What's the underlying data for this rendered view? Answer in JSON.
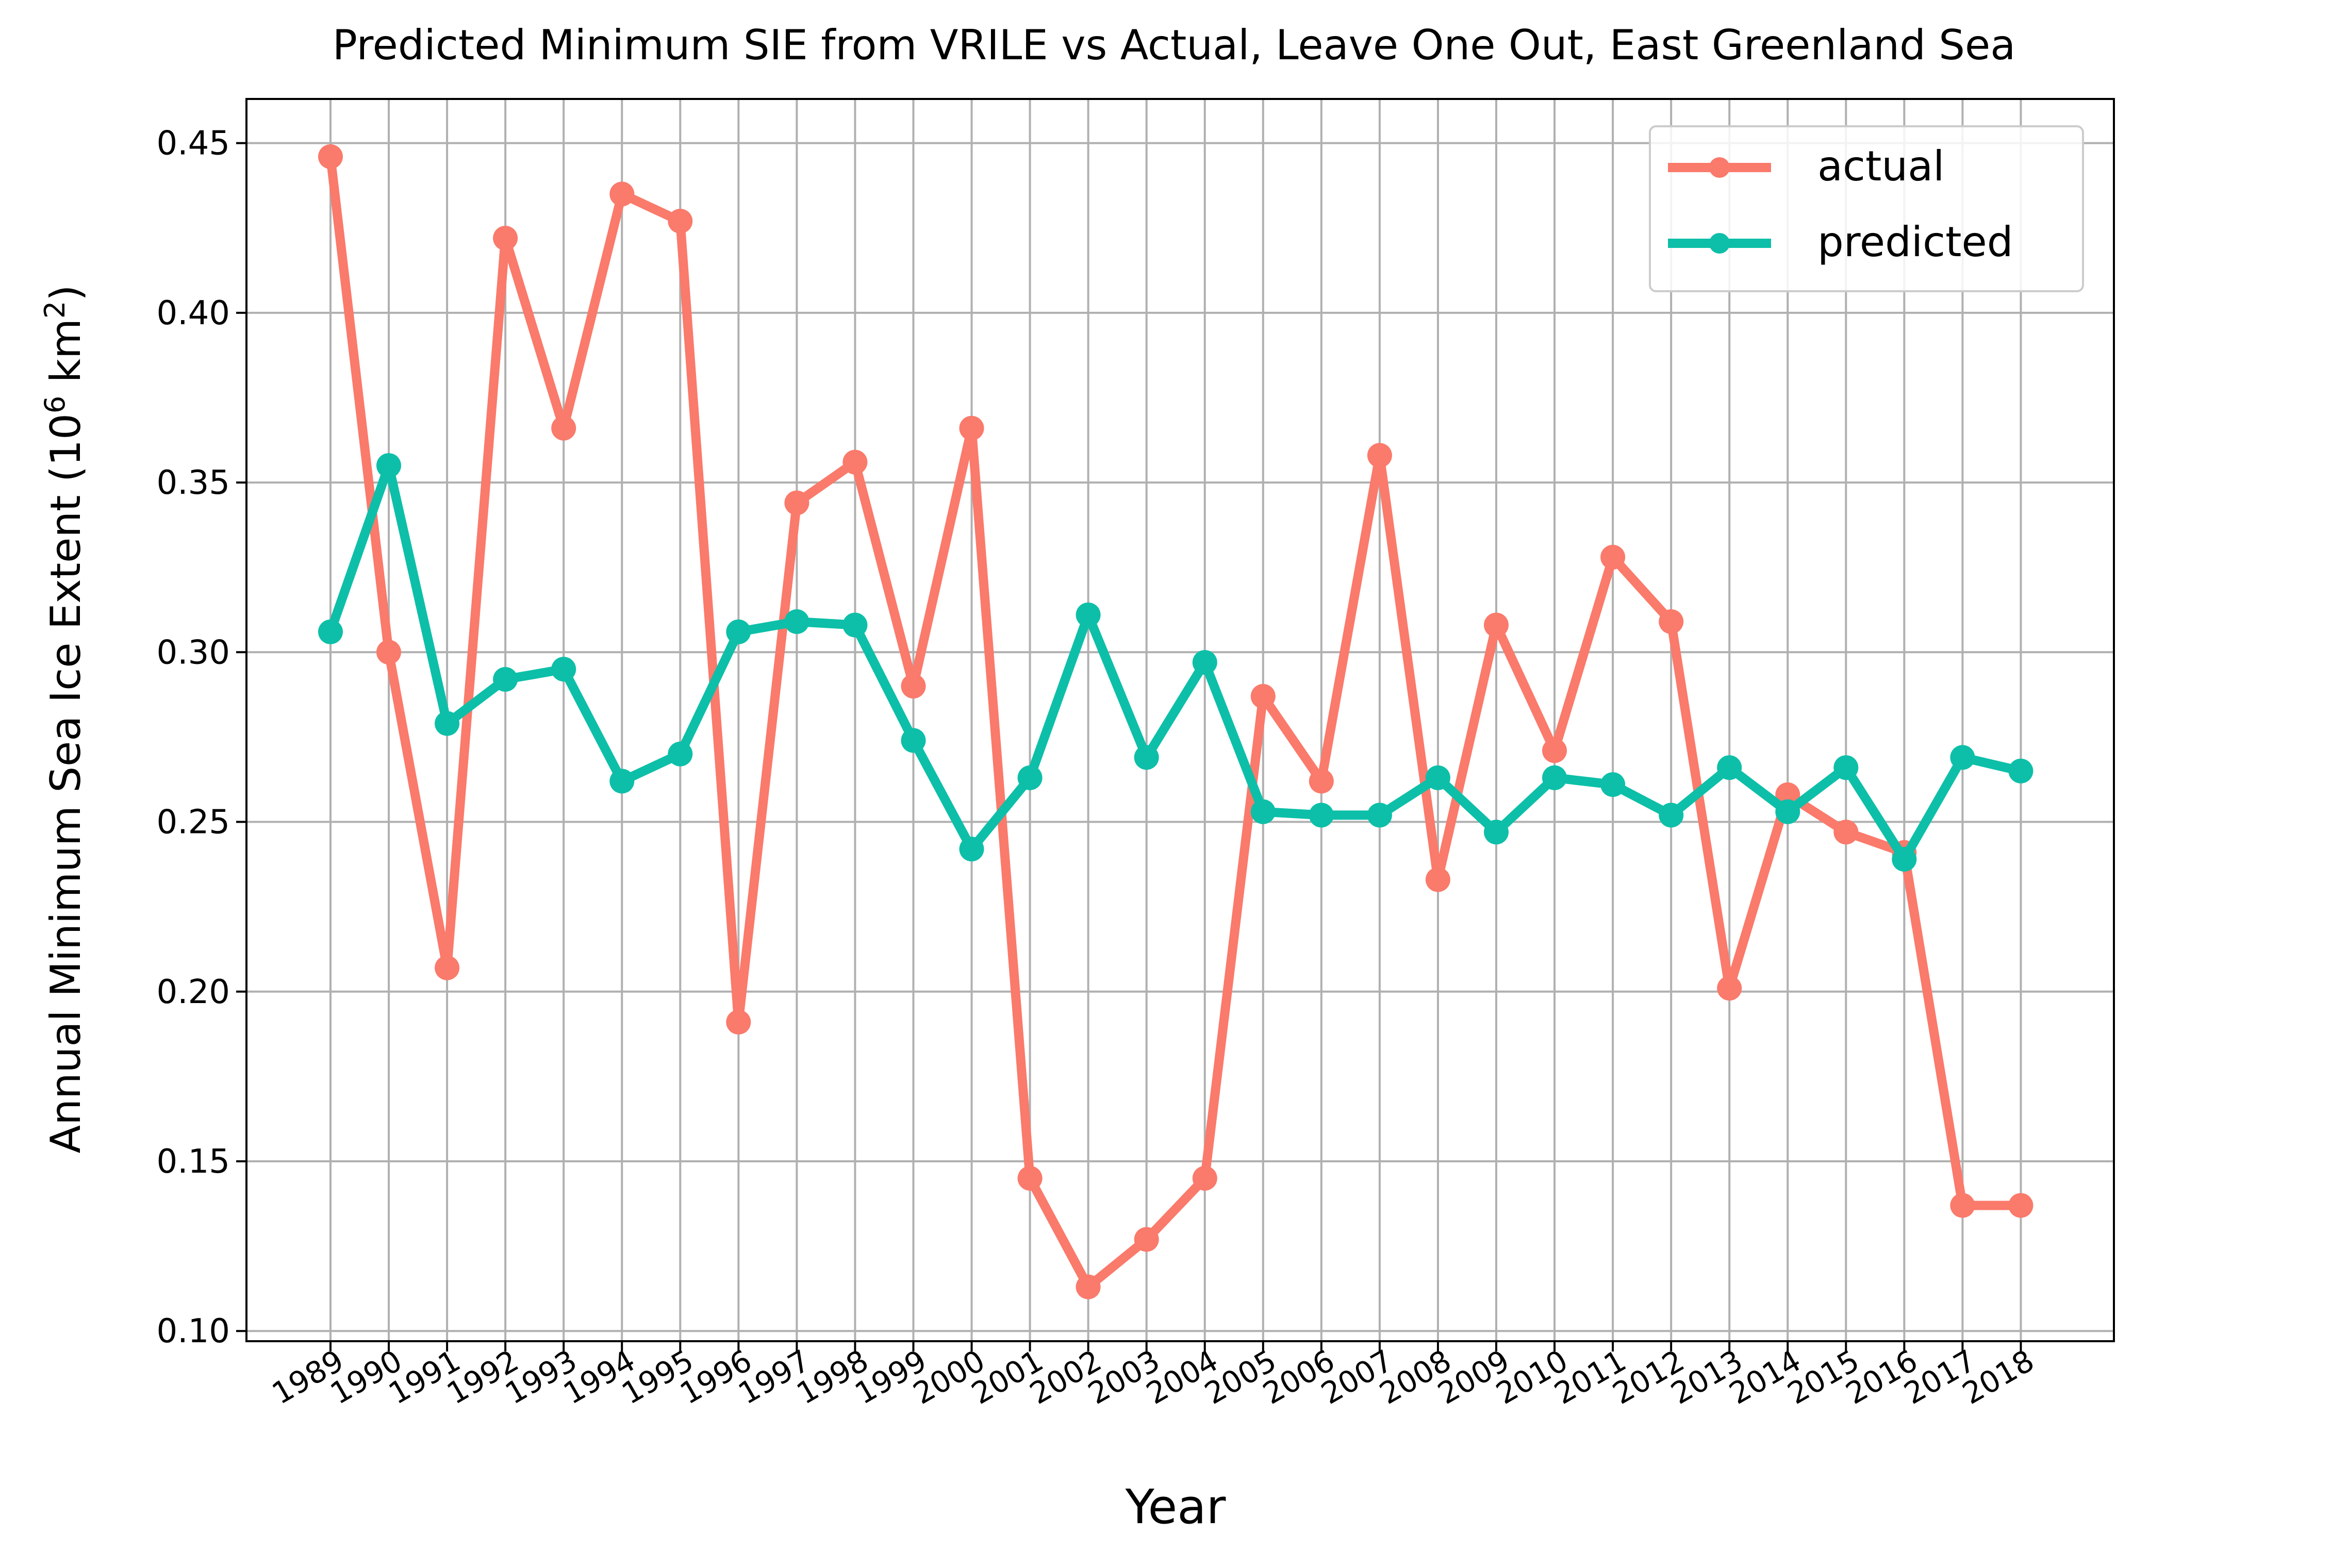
{
  "chart_data": {
    "type": "line",
    "title": "Predicted Minimum SIE from VRILE vs Actual, Leave One Out, East Greenland Sea",
    "xlabel": "Year",
    "ylabel": "Annual Minimum Sea Ice Extent (10",
    "ylabel_sup1": "6",
    "ylabel_mid": " km",
    "ylabel_sup2": "2",
    "ylabel_end": ")",
    "ylim": [
      0.097,
      0.463
    ],
    "yticks": [
      0.1,
      0.15,
      0.2,
      0.25,
      0.3,
      0.35,
      0.4,
      0.45
    ],
    "ytick_labels": [
      "0.10",
      "0.15",
      "0.20",
      "0.25",
      "0.30",
      "0.35",
      "0.40",
      "0.45"
    ],
    "grid": true,
    "legend_position": "upper right",
    "categories": [
      "1989",
      "1990",
      "1991",
      "1992",
      "1993",
      "1994",
      "1995",
      "1996",
      "1997",
      "1998",
      "1999",
      "2000",
      "2001",
      "2002",
      "2003",
      "2004",
      "2005",
      "2006",
      "2007",
      "2008",
      "2009",
      "2010",
      "2011",
      "2012",
      "2013",
      "2014",
      "2015",
      "2016",
      "2017",
      "2018"
    ],
    "series": [
      {
        "name": "actual",
        "color": "#FA7A6B",
        "values": [
          0.446,
          0.3,
          0.207,
          0.422,
          0.366,
          0.435,
          0.427,
          0.191,
          0.344,
          0.356,
          0.29,
          0.366,
          0.145,
          0.113,
          0.127,
          0.145,
          0.287,
          0.262,
          0.358,
          0.233,
          0.308,
          0.271,
          0.328,
          0.309,
          0.201,
          0.258,
          0.247,
          0.241,
          0.137,
          0.137
        ]
      },
      {
        "name": "predicted",
        "color": "#0DBFA8",
        "values": [
          0.306,
          0.355,
          0.279,
          0.292,
          0.295,
          0.262,
          0.27,
          0.306,
          0.309,
          0.308,
          0.274,
          0.242,
          0.263,
          0.311,
          0.269,
          0.297,
          0.253,
          0.252,
          0.252,
          0.263,
          0.247,
          0.263,
          0.261,
          0.252,
          0.266,
          0.253,
          0.266,
          0.239,
          0.269,
          0.265
        ]
      }
    ]
  }
}
